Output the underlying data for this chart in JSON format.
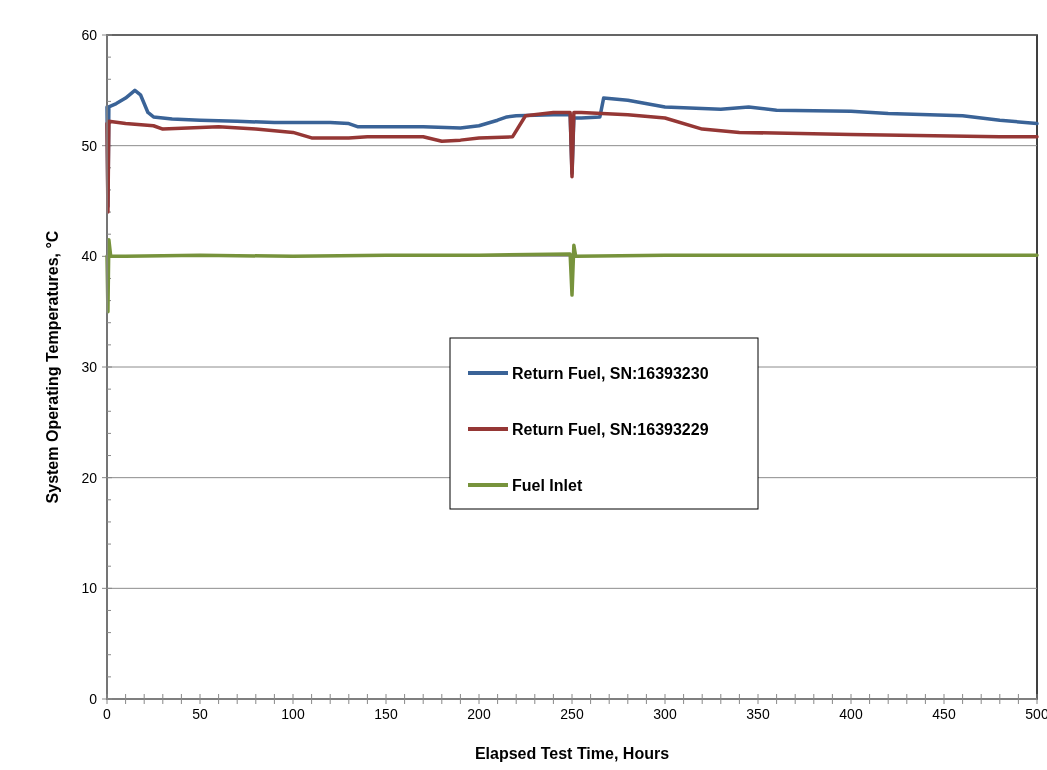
{
  "chart_data": {
    "type": "line",
    "xlabel": "Elapsed Test Time, Hours",
    "ylabel": "System Operating Temperatures, °C",
    "xlim": [
      0,
      500
    ],
    "ylim": [
      0,
      60
    ],
    "xticks": [
      0,
      {
        "value": 10,
        "label": null
      },
      {
        "value": 20,
        "label": null
      },
      {
        "value": 30,
        "label": null
      },
      {
        "value": 40,
        "label": null
      },
      50,
      {
        "value": 60,
        "label": null
      },
      {
        "value": 70,
        "label": null
      },
      {
        "value": 80,
        "label": null
      },
      {
        "value": 90,
        "label": null
      },
      100,
      {
        "value": 110,
        "label": null
      },
      {
        "value": 120,
        "label": null
      },
      {
        "value": 130,
        "label": null
      },
      {
        "value": 140,
        "label": null
      },
      150,
      {
        "value": 160,
        "label": null
      },
      {
        "value": 170,
        "label": null
      },
      {
        "value": 180,
        "label": null
      },
      {
        "value": 190,
        "label": null
      },
      200,
      {
        "value": 210,
        "label": null
      },
      {
        "value": 220,
        "label": null
      },
      {
        "value": 230,
        "label": null
      },
      {
        "value": 240,
        "label": null
      },
      250,
      {
        "value": 260,
        "label": null
      },
      {
        "value": 270,
        "label": null
      },
      {
        "value": 280,
        "label": null
      },
      {
        "value": 290,
        "label": null
      },
      300,
      {
        "value": 310,
        "label": null
      },
      {
        "value": 320,
        "label": null
      },
      {
        "value": 330,
        "label": null
      },
      {
        "value": 340,
        "label": null
      },
      350,
      {
        "value": 360,
        "label": null
      },
      {
        "value": 370,
        "label": null
      },
      {
        "value": 380,
        "label": null
      },
      {
        "value": 390,
        "label": null
      },
      400,
      {
        "value": 410,
        "label": null
      },
      {
        "value": 420,
        "label": null
      },
      {
        "value": 430,
        "label": null
      },
      {
        "value": 440,
        "label": null
      },
      450,
      {
        "value": 460,
        "label": null
      },
      {
        "value": 470,
        "label": null
      },
      {
        "value": 480,
        "label": null
      },
      {
        "value": 490,
        "label": null
      },
      500
    ],
    "yticks": [
      0,
      10,
      20,
      30,
      40,
      50,
      60
    ],
    "grid": "y",
    "legend": "center",
    "marker": "none",
    "line_style": "solid",
    "series": [
      {
        "name": "Return Fuel, SN:16393230",
        "color": "#3a6397",
        "x": [
          0,
          0.5,
          1,
          5,
          10,
          15,
          18,
          22,
          25,
          35,
          50,
          70,
          90,
          100,
          120,
          130,
          135,
          150,
          170,
          190,
          200,
          210,
          215,
          220,
          240,
          249,
          250,
          251,
          255,
          265,
          267,
          280,
          300,
          330,
          345,
          360,
          400,
          420,
          460,
          480,
          500
        ],
        "values": [
          53.5,
          44.5,
          53.5,
          53.8,
          54.3,
          55,
          54.6,
          53,
          52.6,
          52.4,
          52.3,
          52.2,
          52.1,
          52.1,
          52.1,
          52.0,
          51.7,
          51.7,
          51.7,
          51.6,
          51.8,
          52.3,
          52.6,
          52.7,
          52.8,
          52.8,
          47.5,
          52.5,
          52.5,
          52.6,
          54.3,
          54.1,
          53.5,
          53.3,
          53.5,
          53.2,
          53.1,
          52.9,
          52.7,
          52.3,
          52.0
        ]
      },
      {
        "name": "Return Fuel, SN:16393229",
        "color": "#953735",
        "x": [
          0,
          0.5,
          1,
          10,
          25,
          30,
          60,
          80,
          100,
          110,
          130,
          140,
          170,
          180,
          190,
          200,
          218,
          225,
          240,
          249,
          250,
          251,
          255,
          280,
          300,
          320,
          340,
          400,
          480,
          500
        ],
        "values": [
          52,
          44,
          52.2,
          52,
          51.8,
          51.5,
          51.7,
          51.5,
          51.2,
          50.7,
          50.7,
          50.8,
          50.8,
          50.4,
          50.5,
          50.7,
          50.8,
          52.7,
          53,
          53,
          47.2,
          53,
          53,
          52.8,
          52.5,
          51.5,
          51.2,
          51.0,
          50.8,
          50.8
        ]
      },
      {
        "name": "Fuel Inlet",
        "color": "#77933c",
        "x": [
          0,
          0.5,
          1,
          2,
          10,
          50,
          100,
          150,
          200,
          249,
          250,
          251,
          252,
          300,
          350,
          400,
          450,
          500
        ],
        "values": [
          40,
          35,
          41.5,
          40,
          40,
          40.1,
          40,
          40.1,
          40.1,
          40.2,
          36.5,
          41,
          40,
          40.1,
          40.1,
          40.1,
          40.1,
          40.1
        ]
      }
    ]
  }
}
